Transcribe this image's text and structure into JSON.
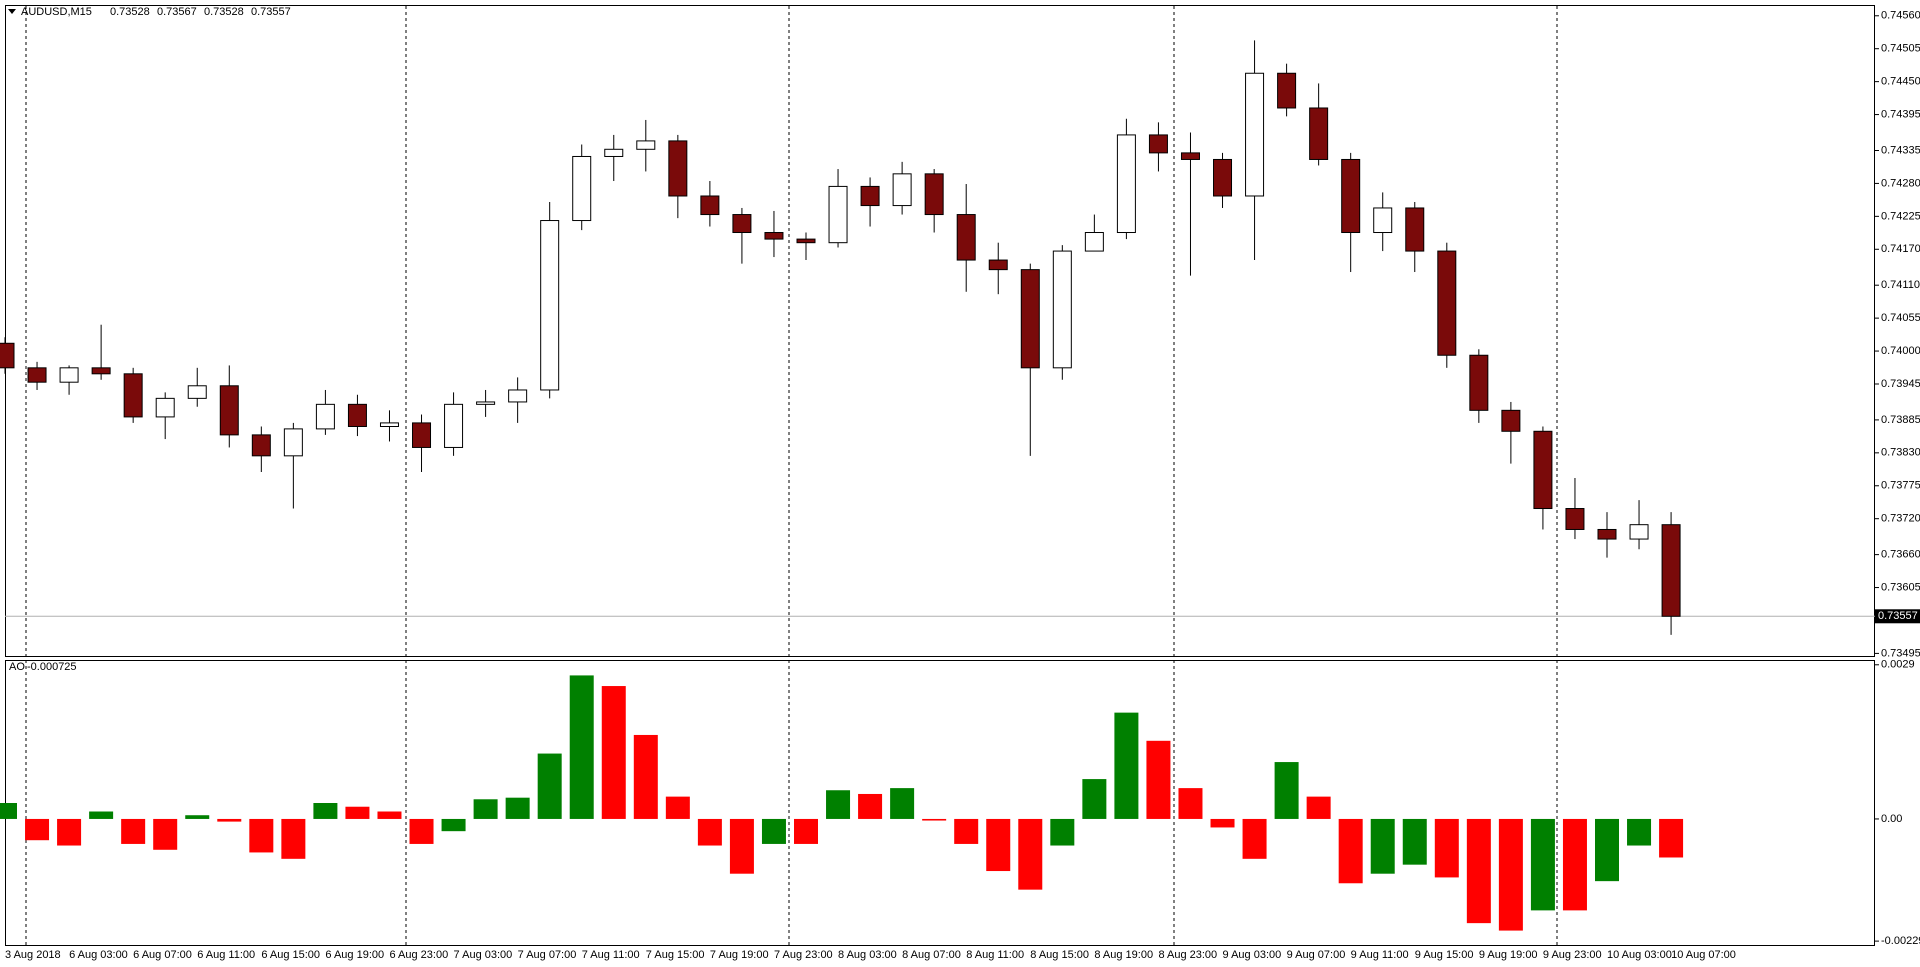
{
  "chart_data": [
    {
      "type": "candlestick",
      "symbol": "AUDUSD,M15",
      "header_values": [
        0.73528,
        0.73567,
        0.73528,
        0.73557
      ],
      "categories": [
        "3 Aug 2018",
        null,
        "6 Aug 03:00",
        null,
        "6 Aug 07:00",
        null,
        "6 Aug 11:00",
        null,
        "6 Aug 15:00",
        null,
        "6 Aug 19:00",
        null,
        "6 Aug 23:00",
        null,
        "7 Aug 03:00",
        null,
        "7 Aug 07:00",
        null,
        "7 Aug 11:00",
        null,
        "7 Aug 15:00",
        null,
        "7 Aug 19:00",
        null,
        "7 Aug 23:00",
        null,
        "8 Aug 03:00",
        null,
        "8 Aug 07:00",
        null,
        "8 Aug 11:00",
        null,
        "8 Aug 15:00",
        null,
        "8 Aug 19:00",
        null,
        "8 Aug 23:00",
        null,
        "9 Aug 03:00",
        null,
        "9 Aug 07:00",
        null,
        "9 Aug 11:00",
        null,
        "9 Aug 15:00",
        null,
        "9 Aug 19:00",
        null,
        "9 Aug 23:00",
        null,
        "10 Aug 03:00",
        null,
        "10 Aug 07:00"
      ],
      "open": [
        0.74013,
        0.73972,
        0.73948,
        0.73972,
        0.73962,
        0.7389,
        0.73921,
        0.73942,
        0.7386,
        0.73825,
        0.7387,
        0.73911,
        0.73874,
        0.7388,
        0.73839,
        0.73911,
        0.73915,
        0.73935,
        0.74218,
        0.74325,
        0.74337,
        0.74351,
        0.74259,
        0.74228,
        0.74198,
        0.74187,
        0.74181,
        0.74275,
        0.74243,
        0.74296,
        0.74228,
        0.74152,
        0.74136,
        0.73972,
        0.74167,
        0.74198,
        0.74361,
        0.74331,
        0.7432,
        0.74259,
        0.74464,
        0.74406,
        0.7432,
        0.74198,
        0.74239,
        0.74167,
        0.73993,
        0.73901,
        0.73866,
        0.73737,
        0.73702,
        0.73686,
        0.7371
      ],
      "high": [
        0.74023,
        0.73982,
        0.73976,
        0.74044,
        0.73972,
        0.73931,
        0.73972,
        0.73976,
        0.73874,
        0.7388,
        0.73935,
        0.73927,
        0.73901,
        0.73894,
        0.73931,
        0.73935,
        0.73956,
        0.74249,
        0.74345,
        0.74361,
        0.74386,
        0.74361,
        0.74284,
        0.74239,
        0.74234,
        0.74198,
        0.74304,
        0.7429,
        0.74316,
        0.74304,
        0.74279,
        0.74181,
        0.74146,
        0.74177,
        0.74228,
        0.74388,
        0.74382,
        0.74365,
        0.74331,
        0.74519,
        0.7448,
        0.74447,
        0.74331,
        0.74265,
        0.74249,
        0.74181,
        0.74003,
        0.73915,
        0.73874,
        0.73788,
        0.73731,
        0.73751,
        0.73731
      ],
      "low": [
        0.73962,
        0.73935,
        0.73927,
        0.73952,
        0.7388,
        0.73853,
        0.73907,
        0.73839,
        0.73798,
        0.73737,
        0.7386,
        0.73858,
        0.73849,
        0.73798,
        0.73825,
        0.7389,
        0.7388,
        0.73921,
        0.74202,
        0.74284,
        0.743,
        0.74222,
        0.74208,
        0.74146,
        0.74157,
        0.74152,
        0.74173,
        0.74208,
        0.74228,
        0.74198,
        0.74099,
        0.74095,
        0.73825,
        0.73952,
        0.74167,
        0.74187,
        0.743,
        0.74126,
        0.74239,
        0.74152,
        0.74392,
        0.7431,
        0.74132,
        0.74167,
        0.74132,
        0.73972,
        0.7388,
        0.73812,
        0.73702,
        0.73686,
        0.73655,
        0.73669,
        0.73526
      ],
      "close": [
        0.73972,
        0.73948,
        0.73972,
        0.73962,
        0.7389,
        0.73921,
        0.73942,
        0.7386,
        0.73825,
        0.7387,
        0.73911,
        0.73874,
        0.7388,
        0.73839,
        0.73911,
        0.73915,
        0.73935,
        0.74218,
        0.74325,
        0.74337,
        0.74351,
        0.74259,
        0.74228,
        0.74198,
        0.74187,
        0.74181,
        0.74275,
        0.74243,
        0.74296,
        0.74228,
        0.74152,
        0.74136,
        0.73972,
        0.74167,
        0.74198,
        0.74361,
        0.74331,
        0.7432,
        0.74259,
        0.74464,
        0.74406,
        0.7432,
        0.74198,
        0.74239,
        0.74167,
        0.73993,
        0.73901,
        0.73866,
        0.73737,
        0.73702,
        0.73686,
        0.7371,
        0.73557
      ],
      "up_color": "#ffffff",
      "down_color": "#7a0a0a",
      "wick_color": "#000000",
      "ylim": [
        0.73489,
        0.74578
      ],
      "yticks": [
        {
          "value": 0.7456,
          "label": "0.74560"
        },
        0.74505,
        {
          "value": 0.7445,
          "label": "0.74450"
        },
        0.74395,
        0.74335,
        {
          "value": 0.7428,
          "label": "0.74280"
        },
        0.74225,
        {
          "value": 0.7417,
          "label": "0.74170"
        },
        {
          "value": 0.7411,
          "label": "0.74110"
        },
        0.74055,
        {
          "value": 0.74,
          "label": "0.74000"
        },
        0.73945,
        0.73885,
        {
          "value": 0.7383,
          "label": "0.73830"
        },
        0.73775,
        {
          "value": 0.7372,
          "label": "0.73720"
        },
        {
          "value": 0.7366,
          "label": "0.73660"
        },
        0.73605,
        0.73495
      ],
      "last_price": 0.73557
    },
    {
      "type": "bar",
      "name": "AO",
      "last_value": -0.000725,
      "values": [
        0.0003,
        -0.0004,
        -0.0005,
        0.00014,
        -0.00047,
        -0.00058,
        7e-05,
        -5e-05,
        -0.00063,
        -0.00075,
        0.0003,
        0.00023,
        0.00014,
        -0.00047,
        -0.00023,
        0.00037,
        0.0004,
        0.00123,
        0.0027,
        0.0025,
        0.00158,
        0.00042,
        -0.0005,
        -0.00103,
        -0.00047,
        -0.00047,
        0.00054,
        0.00047,
        0.00058,
        -3e-05,
        -0.00047,
        -0.00098,
        -0.00133,
        -0.0005,
        0.00075,
        0.002,
        0.00147,
        0.00058,
        -0.00016,
        -0.00075,
        0.00107,
        0.00042,
        -0.00121,
        -0.00103,
        -0.00086,
        -0.0011,
        -0.00196,
        -0.0021,
        -0.00172,
        -0.00172,
        -0.00117,
        -0.0005,
        -0.000725
      ],
      "up_color": "#008000",
      "down_color": "#ff0000",
      "ylim": [
        -0.00239,
        0.00299
      ],
      "yticks": [
        0.0029,
        {
          "value": 0,
          "label": "0.00"
        },
        -0.002298
      ]
    }
  ]
}
